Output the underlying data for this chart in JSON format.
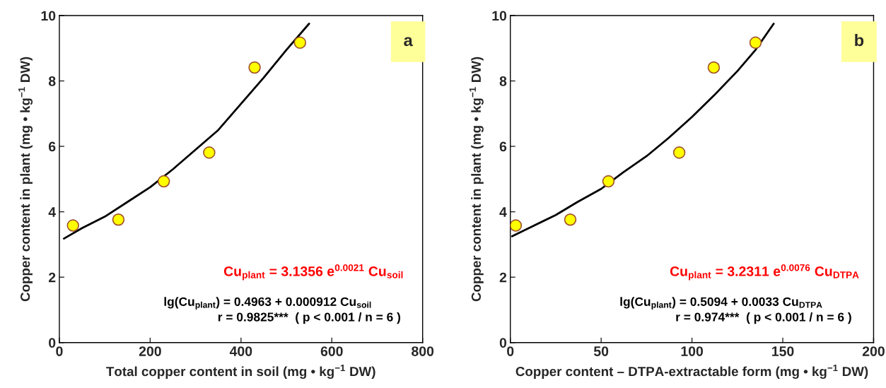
{
  "chart_data": [
    {
      "type": "scatter",
      "title": "a",
      "xlabel": "Total copper content in soil (mg • kg$^{−1}$ DW)",
      "ylabel": "Copper content in plant (mg • kg$^{−1}$ DW)",
      "xlim": [
        0,
        800
      ],
      "xticks": [
        0,
        200,
        400,
        600,
        800
      ],
      "ylim": [
        0,
        10
      ],
      "yticks": [
        0,
        2,
        4,
        6,
        8,
        10
      ],
      "grid": false,
      "legend": false,
      "series": [
        {
          "color": "#ffff00",
          "marker": "circle",
          "x": [
            30,
            130,
            230,
            330,
            430,
            530
          ],
          "values": [
            3.58,
            3.76,
            4.93,
            5.81,
            8.41,
            9.17
          ]
        },
        {
          "type": "line",
          "color": "#000000",
          "line_style": "solid",
          "x": [
            10,
            50,
            100,
            150,
            200,
            250,
            300,
            350,
            400,
            450,
            500,
            550
          ],
          "values": [
            3.18,
            3.5,
            3.85,
            4.3,
            4.75,
            5.3,
            5.9,
            6.5,
            7.3,
            8.1,
            8.95,
            9.75
          ]
        }
      ],
      "annotations": [
        "Cu$_{plant}$ = 3.1356 e$^{0.0021}$ Cu$_{soil}$",
        "lg(Cu$_{plant}$) = 0.4963 + 0.000912 Cu$_{soil}$",
        "r = 0.9825***  ( p < 0.001 / n = 6 )"
      ]
    },
    {
      "type": "scatter",
      "title": "b",
      "xlabel": "Copper content – DTPA-extractable form (mg • kg$^{−1}$ DW)",
      "ylabel": "Copper content in plant (mg • kg$^{−1}$ DW)",
      "xlim": [
        0,
        200
      ],
      "xticks": [
        0,
        50,
        100,
        150,
        200
      ],
      "ylim": [
        0,
        10
      ],
      "yticks": [
        0,
        2,
        4,
        6,
        8,
        10
      ],
      "grid": false,
      "legend": false,
      "series": [
        {
          "color": "#ffff00",
          "marker": "circle",
          "x": [
            3,
            33,
            54,
            93,
            112,
            135
          ],
          "values": [
            3.58,
            3.76,
            4.93,
            5.81,
            8.41,
            9.17
          ]
        },
        {
          "type": "line",
          "color": "#000000",
          "line_style": "solid",
          "x": [
            1,
            12,
            25,
            37,
            50,
            62,
            75,
            87,
            100,
            112,
            125,
            135,
            145
          ],
          "values": [
            3.25,
            3.55,
            3.9,
            4.3,
            4.7,
            5.2,
            5.7,
            6.25,
            6.9,
            7.55,
            8.3,
            8.95,
            9.75
          ]
        }
      ],
      "annotations": [
        "Cu$_{plant}$ = 3.2311 e$^{0.0076}$ Cu$_{DTPA}$",
        "lg(Cu$_{plant}$) = 0.5094 + 0.0033 Cu$_{DTPA}$",
        "r = 0.974***  ( p < 0.001 / n = 6 )"
      ]
    }
  ]
}
